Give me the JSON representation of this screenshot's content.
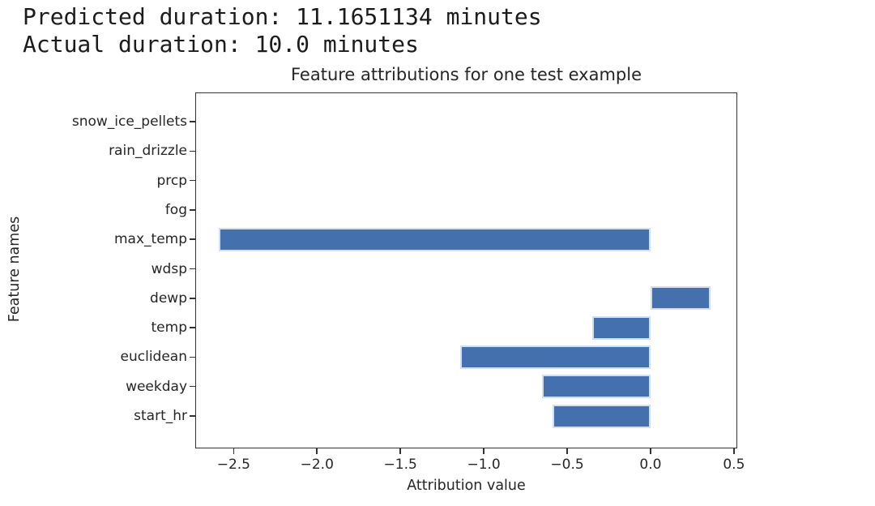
{
  "header": {
    "lines": [
      "Predicted duration: 11.1651134 minutes",
      "Actual duration: 10.0 minutes"
    ]
  },
  "chart_data": {
    "type": "bar",
    "orientation": "horizontal",
    "title": "Feature attributions for one test example",
    "xlabel": "Attribution value",
    "ylabel": "Feature names",
    "categories_top_to_bottom": [
      "snow_ice_pellets",
      "rain_drizzle",
      "prcp",
      "fog",
      "max_temp",
      "wdsp",
      "dewp",
      "temp",
      "euclidean",
      "weekday",
      "start_hr"
    ],
    "values": [
      0,
      0,
      0,
      0,
      -2.59,
      0,
      0.36,
      -0.35,
      -1.14,
      -0.65,
      -0.59
    ],
    "xlim": [
      -2.73,
      0.52
    ],
    "xticks": [
      -2.5,
      -2.0,
      -1.5,
      -1.0,
      -0.5,
      0.0,
      0.5
    ],
    "grid": false,
    "legend": false,
    "colors": {
      "bar_fill": "#4471ad",
      "bar_edge": "#d3deef",
      "axis": "#333333",
      "text": "#262626"
    }
  }
}
